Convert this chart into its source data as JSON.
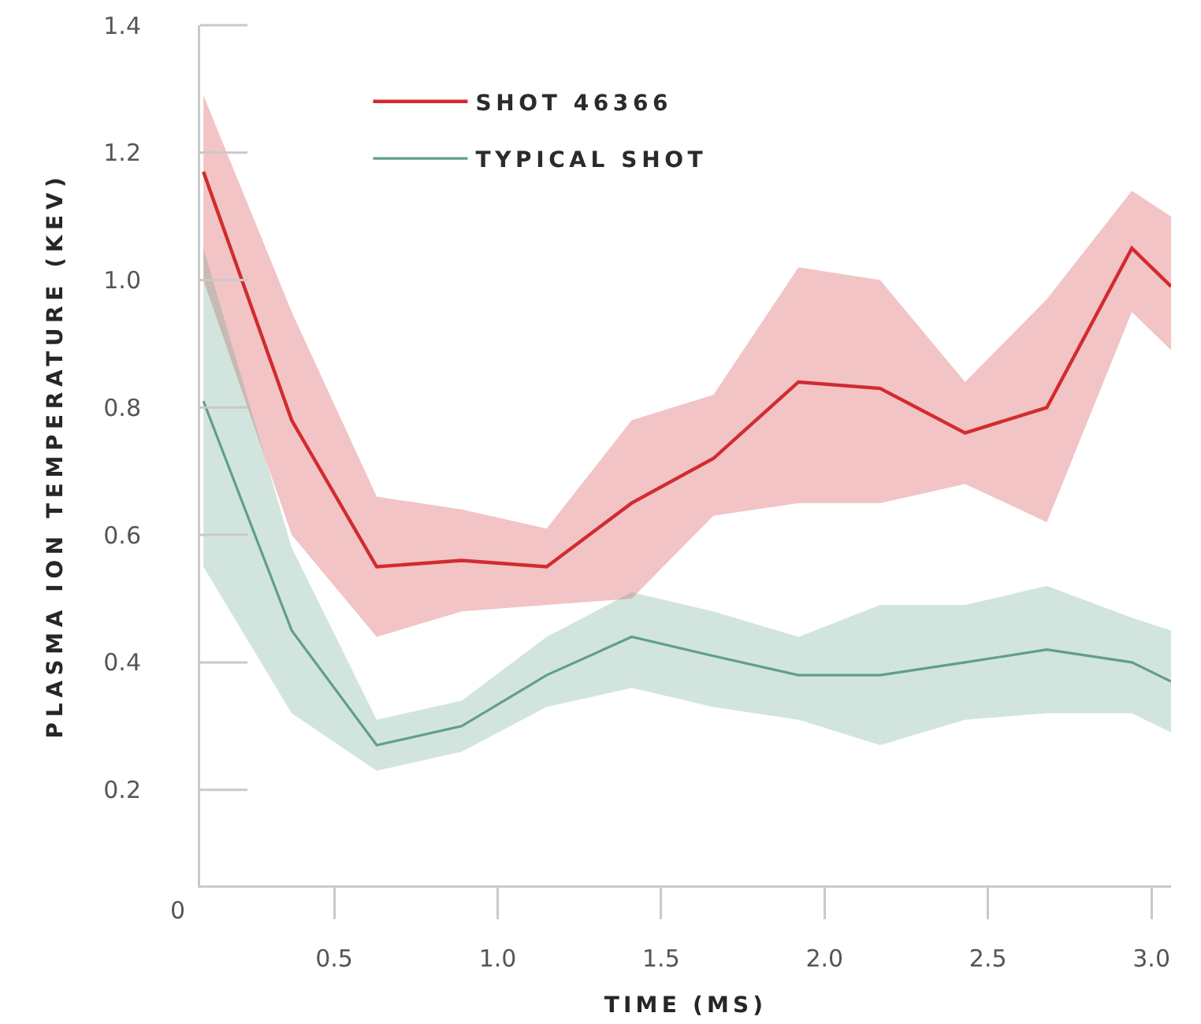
{
  "chart_data": {
    "type": "line",
    "xlabel": "TIME (MS)",
    "ylabel": "PLASMA ION TEMPERATURE (KEV)",
    "annotations": [
      "0"
    ],
    "x": [
      0.1,
      0.37,
      0.63,
      0.89,
      1.15,
      1.41,
      1.66,
      1.92,
      2.17,
      2.43,
      2.68,
      2.94,
      3.06
    ],
    "series": [
      {
        "name": "SHOT 46366",
        "color": "#d22b2f",
        "values": [
          1.17,
          0.78,
          0.55,
          0.56,
          0.55,
          0.65,
          0.72,
          0.84,
          0.83,
          0.76,
          0.8,
          1.05,
          0.99
        ],
        "upper": [
          1.29,
          0.95,
          0.66,
          0.64,
          0.61,
          0.78,
          0.82,
          1.02,
          1.0,
          0.84,
          0.97,
          1.14,
          1.1
        ],
        "lower": [
          1.0,
          0.6,
          0.44,
          0.48,
          0.49,
          0.5,
          0.63,
          0.65,
          0.65,
          0.68,
          0.62,
          0.95,
          0.89
        ]
      },
      {
        "name": "TYPICAL SHOT",
        "color": "#5f9f8a",
        "values": [
          0.81,
          0.45,
          0.27,
          0.3,
          0.38,
          0.44,
          0.41,
          0.38,
          0.38,
          0.4,
          0.42,
          0.4,
          0.37
        ],
        "upper": [
          1.05,
          0.58,
          0.31,
          0.34,
          0.44,
          0.51,
          0.48,
          0.44,
          0.49,
          0.49,
          0.52,
          0.47,
          0.45
        ],
        "lower": [
          0.55,
          0.32,
          0.23,
          0.26,
          0.33,
          0.36,
          0.33,
          0.31,
          0.27,
          0.31,
          0.32,
          0.32,
          0.29
        ]
      }
    ],
    "xlim": [
      0.09,
      3.06
    ],
    "ylim": [
      0.05,
      1.4
    ],
    "xticks": [
      0.5,
      {
        "value": 1,
        "label": "1.0"
      },
      1.5,
      {
        "value": 2,
        "label": "2.0"
      },
      2.5,
      {
        "value": 3,
        "label": "3.0"
      }
    ],
    "yticks": [
      0.2,
      0.4,
      0.6,
      0.8,
      {
        "value": 1,
        "label": "1.0"
      },
      1.2,
      1.4
    ],
    "grid": false,
    "legend": "top left",
    "marker": "none",
    "line_style": "solid"
  }
}
